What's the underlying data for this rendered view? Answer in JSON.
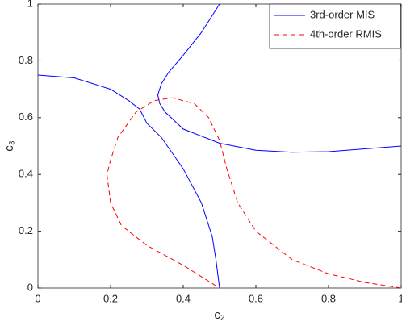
{
  "chart_data": {
    "type": "line",
    "x_label": "c₂",
    "y_label": "c₃",
    "xlim": [
      0,
      1
    ],
    "ylim": [
      0,
      1
    ],
    "xticks": [
      0,
      0.2,
      0.4,
      0.6,
      0.8,
      1
    ],
    "yticks": [
      0,
      0.2,
      0.4,
      0.6,
      0.8,
      1
    ],
    "legend": "upper right",
    "series": [
      {
        "name": "3rd-order MIS",
        "color": "#0000ff",
        "dash": "solid",
        "x": [
          0,
          0.1,
          0.2,
          0.25,
          0.28,
          0.3,
          0.34,
          0.4,
          0.45,
          0.48,
          0.49,
          0.5,
          null,
          0.5,
          0.45,
          0.4,
          0.36,
          0.34,
          0.33,
          0.335,
          0.35,
          0.4,
          0.5,
          0.6,
          0.7,
          0.8,
          0.9,
          1
        ],
        "values": [
          0.75,
          0.74,
          0.7,
          0.66,
          0.63,
          0.58,
          0.53,
          0.42,
          0.3,
          0.18,
          0.1,
          0,
          null,
          1,
          0.9,
          0.82,
          0.76,
          0.72,
          0.68,
          0.65,
          0.62,
          0.56,
          0.51,
          0.485,
          0.478,
          0.48,
          0.49,
          0.5
        ]
      },
      {
        "name": "4th-order RMIS",
        "color": "#ff0000",
        "dash": "dashed",
        "x": [
          1,
          0.9,
          0.8,
          0.7,
          0.6,
          0.55,
          0.52,
          0.5,
          0.47,
          0.43,
          0.37,
          0.32,
          0.27,
          0.22,
          0.2,
          0.19,
          0.2,
          0.23,
          0.3,
          0.4,
          0.45,
          0.5
        ],
        "values": [
          0,
          0.02,
          0.05,
          0.1,
          0.2,
          0.3,
          0.42,
          0.52,
          0.6,
          0.65,
          0.67,
          0.66,
          0.62,
          0.53,
          0.45,
          0.4,
          0.3,
          0.22,
          0.15,
          0.08,
          0.04,
          0
        ]
      }
    ]
  }
}
